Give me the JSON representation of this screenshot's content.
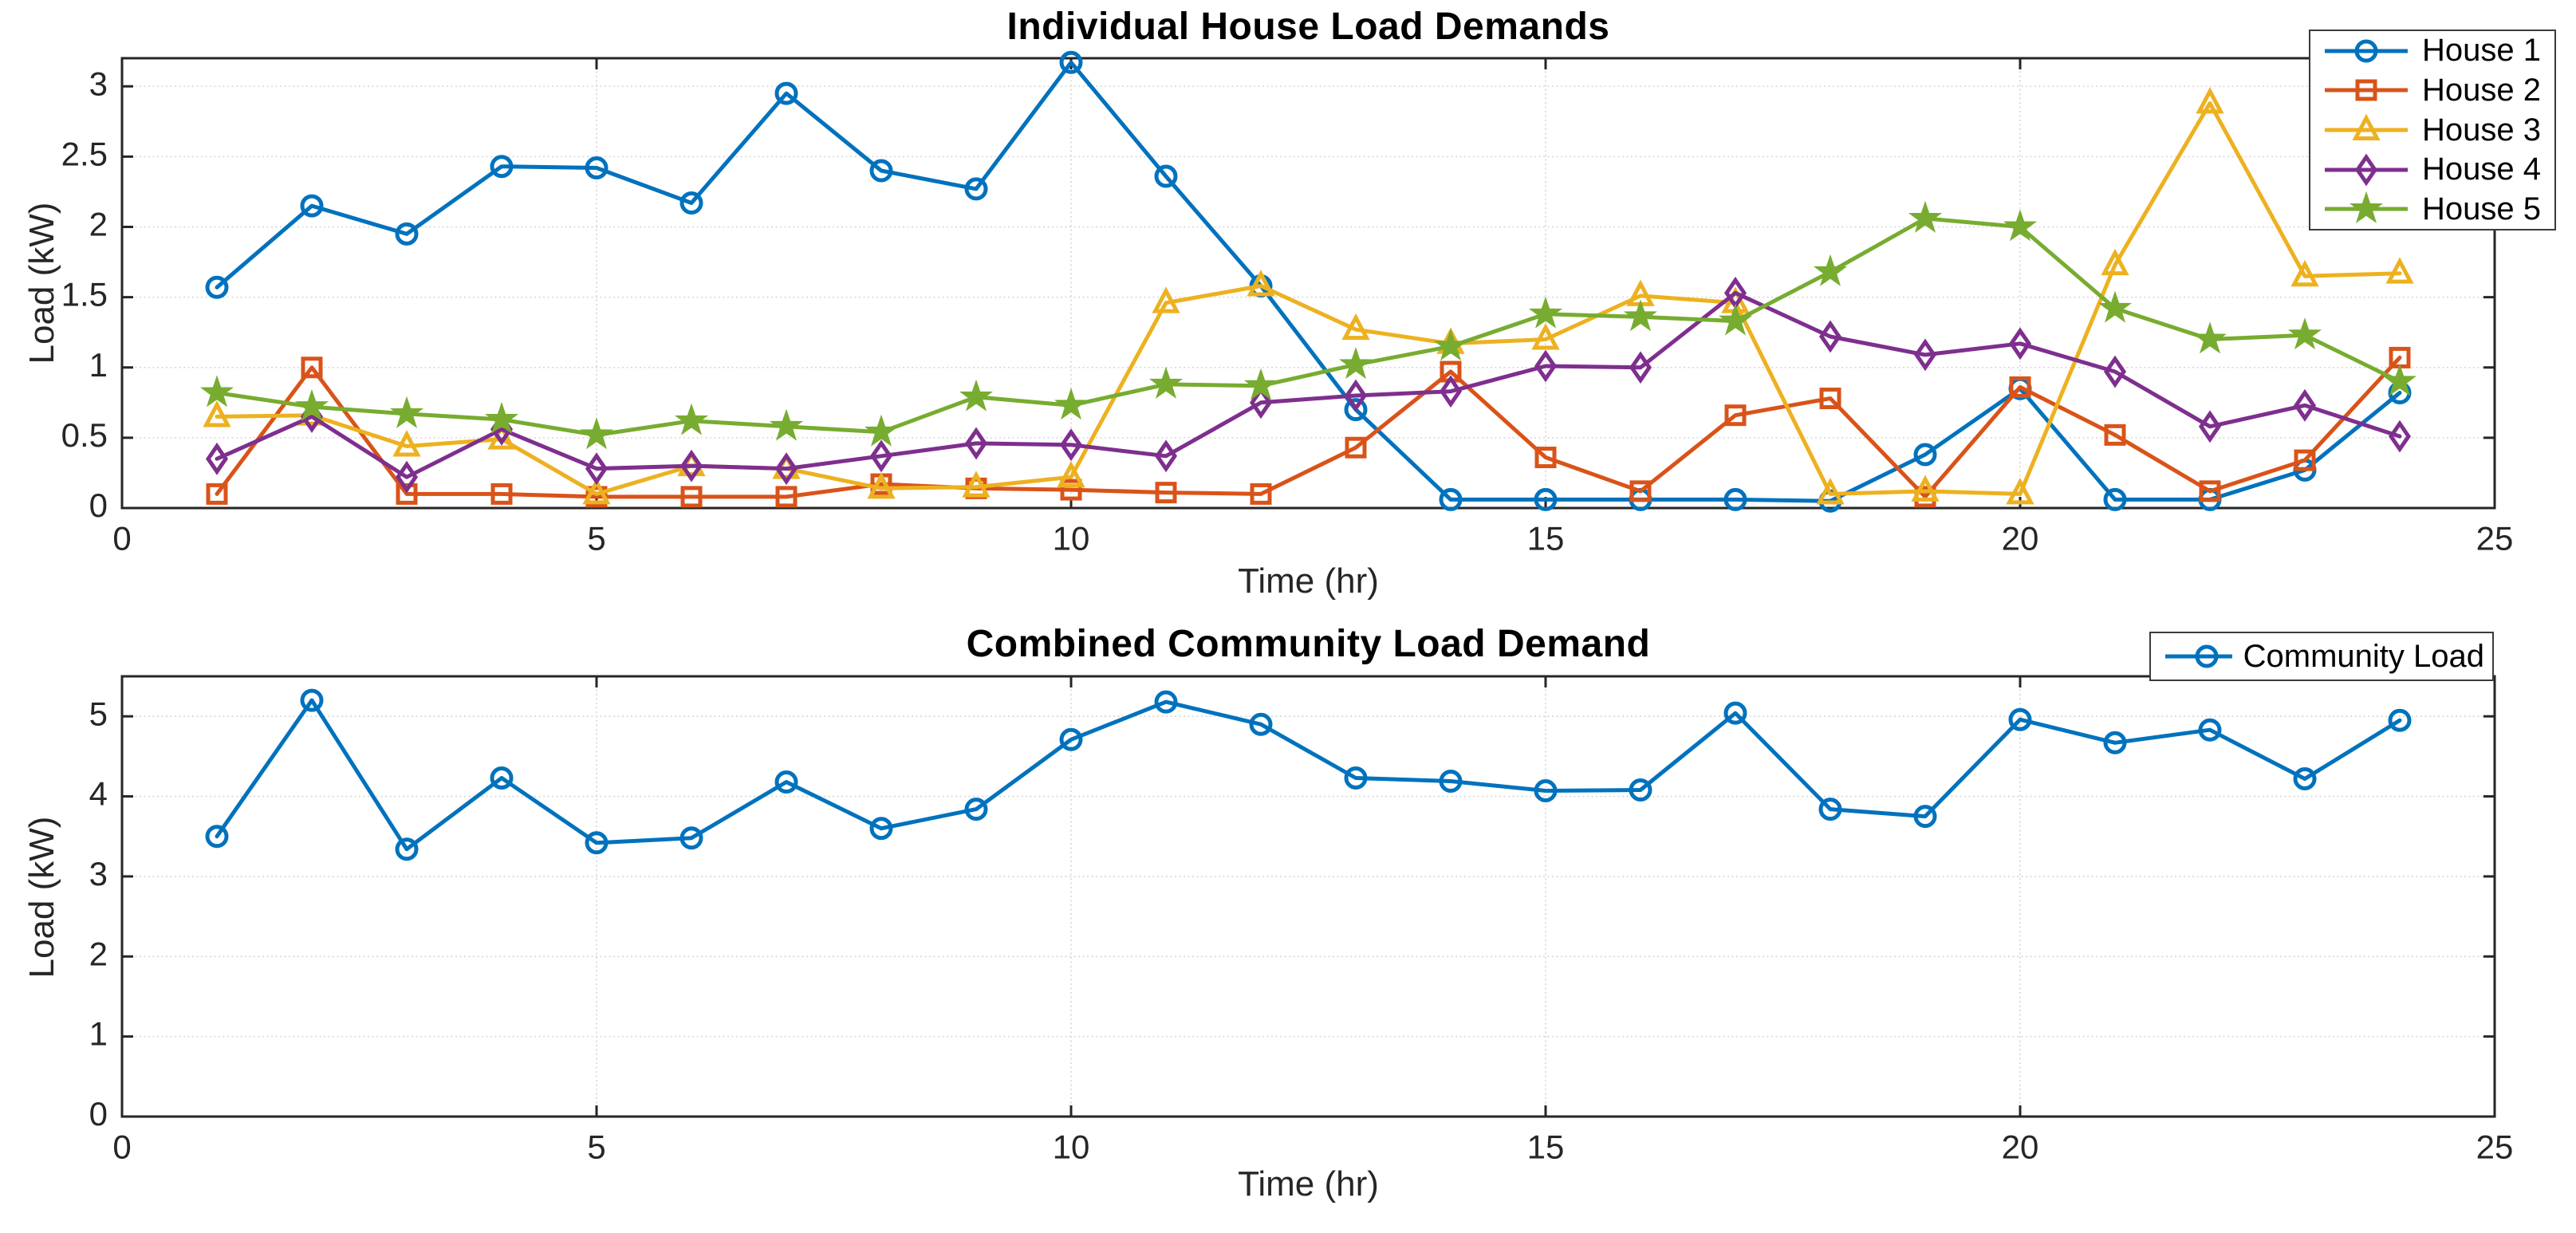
{
  "figure_title": "MATLAB-style load demand figure",
  "colors": {
    "house1": "#0072BD",
    "house2": "#D95319",
    "house3": "#EDB120",
    "house4": "#7E2F8E",
    "house5": "#77AC30",
    "community": "#0072BD",
    "axis": "#262626",
    "grid": "#d6d6d6",
    "text": "#262626"
  },
  "chart_data": [
    {
      "type": "line",
      "title": "Individual House Load Demands",
      "xlabel": "Time (hr)",
      "ylabel": "Load (kW)",
      "xlim": [
        0,
        25
      ],
      "ylim": [
        0,
        3.2
      ],
      "xticks": [
        0,
        5,
        10,
        15,
        20,
        25
      ],
      "yticks": [
        0,
        0.5,
        1,
        1.5,
        2,
        2.5,
        3
      ],
      "grid": true,
      "legend_position": "top-right",
      "x": [
        1,
        2,
        3,
        4,
        5,
        6,
        7,
        8,
        9,
        10,
        11,
        12,
        13,
        14,
        15,
        16,
        17,
        18,
        19,
        20,
        21,
        22,
        23,
        24
      ],
      "series": [
        {
          "name": "House 1",
          "color": "#0072BD",
          "marker": "circle",
          "values": [
            1.57,
            2.15,
            1.95,
            2.43,
            2.42,
            2.17,
            2.95,
            2.4,
            2.27,
            3.17,
            2.36,
            1.58,
            0.7,
            0.06,
            0.06,
            0.06,
            0.06,
            0.05,
            0.38,
            0.85,
            0.06,
            0.06,
            0.27,
            0.82
          ]
        },
        {
          "name": "House 2",
          "color": "#D95319",
          "marker": "square",
          "values": [
            0.1,
            1.0,
            0.1,
            0.1,
            0.08,
            0.08,
            0.08,
            0.17,
            0.14,
            0.13,
            0.11,
            0.1,
            0.43,
            0.97,
            0.36,
            0.12,
            0.66,
            0.78,
            0.08,
            0.86,
            0.52,
            0.12,
            0.34,
            1.07
          ]
        },
        {
          "name": "House 3",
          "color": "#EDB120",
          "marker": "triangle",
          "values": [
            0.65,
            0.66,
            0.44,
            0.49,
            0.1,
            0.3,
            0.28,
            0.14,
            0.15,
            0.22,
            1.46,
            1.58,
            1.27,
            1.17,
            1.2,
            1.51,
            1.46,
            0.1,
            0.12,
            0.1,
            1.73,
            2.88,
            1.65,
            1.67
          ]
        },
        {
          "name": "House 4",
          "color": "#7E2F8E",
          "marker": "diamond",
          "values": [
            0.35,
            0.65,
            0.22,
            0.56,
            0.28,
            0.3,
            0.28,
            0.37,
            0.46,
            0.45,
            0.37,
            0.75,
            0.8,
            0.83,
            1.01,
            1.0,
            1.53,
            1.22,
            1.09,
            1.17,
            0.97,
            0.58,
            0.73,
            0.51
          ]
        },
        {
          "name": "House 5",
          "color": "#77AC30",
          "marker": "star",
          "values": [
            0.82,
            0.72,
            0.67,
            0.63,
            0.52,
            0.62,
            0.58,
            0.54,
            0.79,
            0.73,
            0.88,
            0.87,
            1.02,
            1.15,
            1.38,
            1.36,
            1.33,
            1.68,
            2.06,
            2.0,
            1.42,
            1.2,
            1.23,
            0.9
          ]
        }
      ]
    },
    {
      "type": "line",
      "title": "Combined Community Load Demand",
      "xlabel": "Time (hr)",
      "ylabel": "Load (kW)",
      "xlim": [
        0,
        25
      ],
      "ylim": [
        0,
        5.5
      ],
      "xticks": [
        0,
        5,
        10,
        15,
        20,
        25
      ],
      "yticks": [
        0,
        1,
        2,
        3,
        4,
        5
      ],
      "grid": true,
      "legend_position": "top-right",
      "x": [
        1,
        2,
        3,
        4,
        5,
        6,
        7,
        8,
        9,
        10,
        11,
        12,
        13,
        14,
        15,
        16,
        17,
        18,
        19,
        20,
        21,
        22,
        23,
        24
      ],
      "series": [
        {
          "name": "Community Load",
          "color": "#0072BD",
          "marker": "circle",
          "values": [
            3.5,
            5.2,
            3.34,
            4.23,
            3.42,
            3.48,
            4.18,
            3.6,
            3.84,
            4.71,
            5.18,
            4.9,
            4.23,
            4.19,
            4.07,
            4.08,
            5.04,
            3.84,
            3.75,
            4.96,
            4.67,
            4.83,
            4.22,
            4.95
          ]
        }
      ]
    }
  ]
}
